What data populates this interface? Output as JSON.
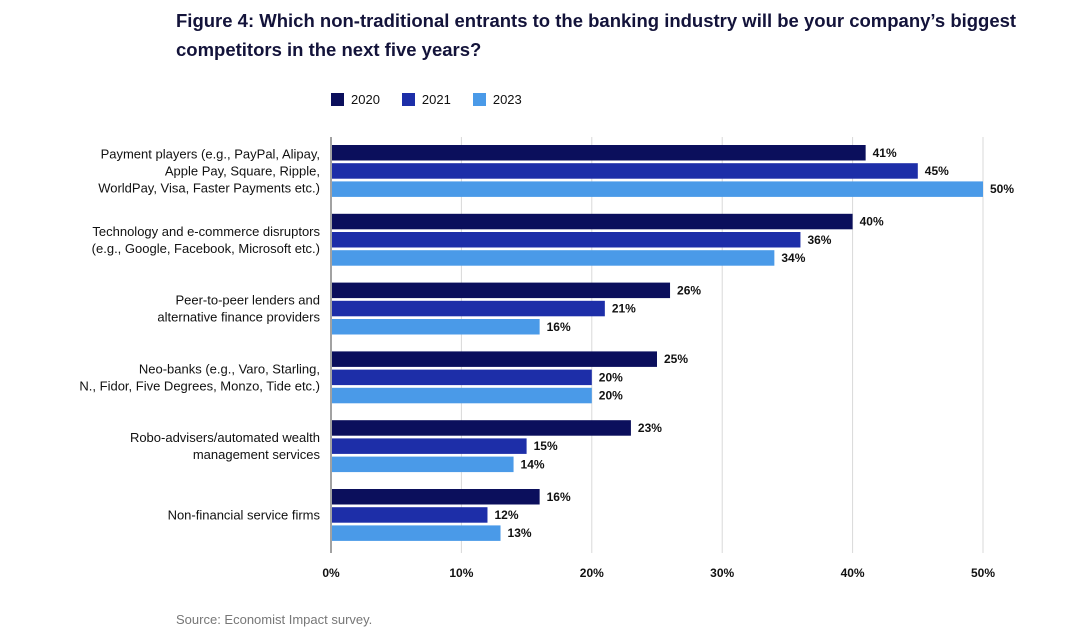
{
  "title": "Figure 4: Which non-traditional entrants to the banking industry will be your company’s biggest competitors in the next five years?",
  "source": "Source: Economist Impact survey.",
  "chart_data": {
    "type": "bar",
    "orientation": "horizontal",
    "title": "Figure 4: Which non-traditional entrants to the banking industry will be your company’s biggest competitors in the next five years?",
    "categories": [
      [
        "Payment players  (e.g., PayPal, Alipay,",
        "Apple Pay, Square, Ripple,",
        "WorldPay, Visa, Faster Payments etc.)"
      ],
      [
        "Technology and e-commerce disruptors",
        "(e.g., Google, Facebook, Microsoft etc.)"
      ],
      [
        "Peer-to-peer lenders and",
        "alternative finance providers"
      ],
      [
        "Neo-banks (e.g., Varo, Starling,",
        "N., Fidor, Five Degrees, Monzo, Tide etc.)"
      ],
      [
        "Robo-advisers/automated wealth",
        "management services"
      ],
      [
        "Non-financial service firms"
      ]
    ],
    "series": [
      {
        "name": "2020",
        "color": "#0b0f5c",
        "values": [
          41,
          40,
          26,
          25,
          23,
          16
        ]
      },
      {
        "name": "2021",
        "color": "#1d2ea8",
        "values": [
          45,
          36,
          21,
          20,
          15,
          12
        ]
      },
      {
        "name": "2023",
        "color": "#4a9ae8",
        "values": [
          50,
          34,
          16,
          20,
          14,
          13
        ]
      }
    ],
    "value_suffix": "%",
    "xlim": [
      0,
      50
    ],
    "xticks": [
      "0%",
      "10%",
      "20%",
      "30%",
      "40%",
      "50%"
    ],
    "grid": true,
    "legend_position": "top-left"
  }
}
